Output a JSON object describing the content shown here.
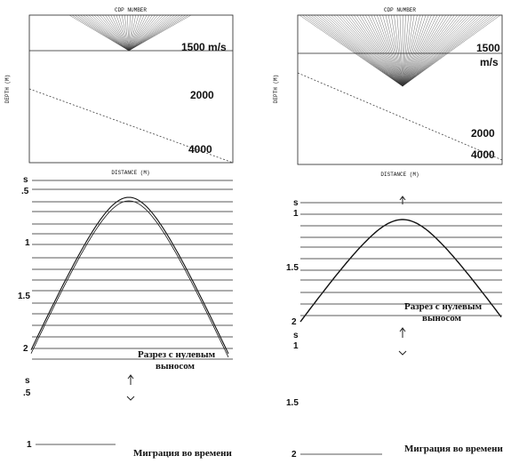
{
  "left": {
    "model": {
      "header": "CDP NUMBER",
      "x_label": "DISTANCE (M)",
      "y_label": "DEPTH (M)",
      "velocity_labels": [
        "1500 m/s",
        "2000",
        "4000"
      ]
    },
    "section": {
      "time_labels": [
        "s",
        ".5",
        "1",
        "1.5",
        "2"
      ],
      "caption": [
        "Разрез с нулевым",
        "выносом"
      ]
    },
    "migration": {
      "time_labels": [
        "s",
        ".5",
        "1"
      ],
      "caption": "Миграция во времени"
    }
  },
  "right": {
    "model": {
      "header": "CDP NUMBER",
      "x_label": "DISTANCE (M)",
      "y_label": "DEPTH (M)",
      "velocity_labels": [
        "1500",
        "m/s",
        "2000",
        "4000"
      ]
    },
    "section": {
      "time_labels": [
        "s",
        "1",
        "1.5",
        "2"
      ],
      "caption": [
        "Разрез с нулевым",
        "выносом"
      ]
    },
    "migration": {
      "time_labels": [
        "s",
        "1",
        "1.5",
        "2"
      ],
      "caption": "Миграция во времени"
    }
  }
}
